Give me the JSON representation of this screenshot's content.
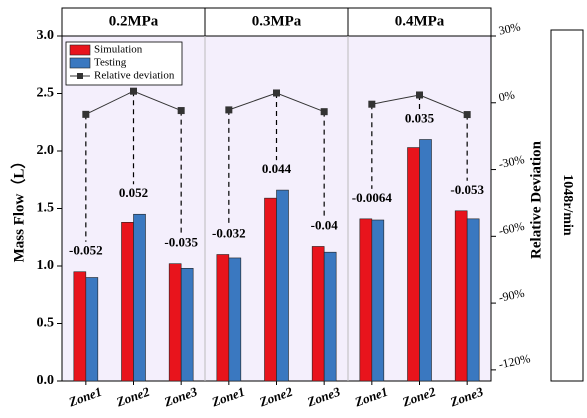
{
  "chart_data": {
    "type": "bar",
    "panels": [
      "0.2MPa",
      "0.3MPa",
      "0.4MPa"
    ],
    "categories": [
      "Zone1",
      "Zone2",
      "Zone3",
      "Zone1",
      "Zone2",
      "Zone3",
      "Zone1",
      "Zone2",
      "Zone3"
    ],
    "y_label": "Mass Flow（L）",
    "y2_label": "Relative Deviation",
    "side_label": "1048r/min",
    "series": [
      {
        "name": "Simulation",
        "color": "#e8141c",
        "values": [
          0.95,
          1.38,
          1.02,
          1.1,
          1.59,
          1.17,
          1.41,
          2.03,
          1.48
        ]
      },
      {
        "name": "Testing",
        "color": "#3a78c0",
        "values": [
          0.9,
          1.45,
          0.98,
          1.07,
          1.66,
          1.12,
          1.4,
          2.1,
          1.41
        ]
      },
      {
        "name": "Relative deviation",
        "color": "#333333",
        "axis": "y2",
        "values": [
          -5.2,
          5.2,
          -3.5,
          -3.2,
          4.4,
          -4,
          -0.64,
          3.5,
          -5.3
        ],
        "value_labels": [
          "-0.052",
          "0.052",
          "-0.035",
          "-0.032",
          "0.044",
          "-0.04",
          "-0.0064",
          "0.035",
          "-0.053"
        ]
      }
    ],
    "ylim": [
      0,
      3
    ],
    "yticks": [
      {
        "value": 0,
        "label": "0.0"
      },
      0.5,
      {
        "value": 1,
        "label": "1.0"
      },
      1.5,
      {
        "value": 2,
        "label": "2.0"
      },
      2.5,
      {
        "value": 3,
        "label": "3.0"
      }
    ],
    "y2lim": [
      -125,
      30
    ],
    "y2ticks": [
      {
        "value": 30,
        "label": "30%"
      },
      {
        "value": 0,
        "label": "0%"
      },
      {
        "value": -30,
        "label": "-30%"
      },
      {
        "value": -60,
        "label": "-60%"
      },
      {
        "value": -90,
        "label": "-90%"
      },
      {
        "value": -120,
        "label": "-120%"
      }
    ],
    "legend": "upper left"
  }
}
